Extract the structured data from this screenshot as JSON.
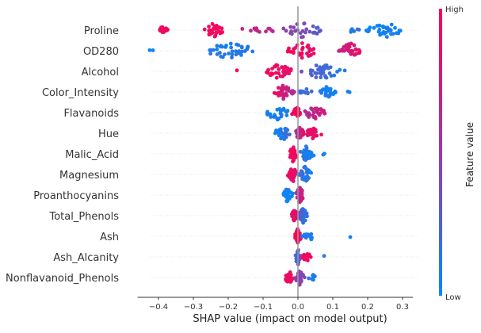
{
  "chart_data": {
    "type": "scatter",
    "subtype": "shap-beeswarm",
    "title": "",
    "xlabel": "SHAP value (impact on model output)",
    "ylabel": "",
    "xlim": [
      -0.46,
      0.33
    ],
    "xticks": [
      -0.4,
      -0.3,
      -0.2,
      -0.1,
      0.0,
      0.1,
      0.2,
      0.3
    ],
    "xtick_labels": [
      "−0.4",
      "−0.3",
      "−0.2",
      "−0.1",
      "0.0",
      "0.1",
      "0.2",
      "0.3"
    ],
    "grid": false,
    "colorbar": {
      "label": "Feature value",
      "high_label": "High",
      "low_label": "Low",
      "low_color": "#008bfb",
      "mid_color": "#9b3aa6",
      "high_color": "#ff0052",
      "placement": "right"
    },
    "features": [
      {
        "name": "Proline",
        "clusters": [
          {
            "x": [
              -0.41,
              -0.37
            ],
            "value": [
              0.9,
              0.95
            ],
            "n": 18
          },
          {
            "x": [
              -0.27,
              -0.21
            ],
            "value": [
              0.95,
              0.9
            ],
            "n": 30
          },
          {
            "x": [
              -0.17,
              -0.06
            ],
            "value": [
              0.75,
              0.65
            ],
            "n": 12
          },
          {
            "x": [
              -0.05,
              0.08
            ],
            "value": [
              0.5,
              0.25
            ],
            "n": 30
          },
          {
            "x": [
              0.13,
              0.18
            ],
            "value": [
              0.15,
              0.1
            ],
            "n": 6
          },
          {
            "x": [
              0.19,
              0.31
            ],
            "value": [
              0.05,
              0.05
            ],
            "n": 35
          }
        ]
      },
      {
        "name": "OD280",
        "clusters": [
          {
            "x": [
              -0.43,
              -0.4
            ],
            "value": [
              0.05,
              0.05
            ],
            "n": 2
          },
          {
            "x": [
              -0.29,
              -0.1
            ],
            "value": [
              0.1,
              0.1
            ],
            "n": 40
          },
          {
            "x": [
              -0.04,
              0.07
            ],
            "value": [
              0.95,
              0.85
            ],
            "n": 30
          },
          {
            "x": [
              0.11,
              0.19
            ],
            "value": [
              0.7,
              0.9
            ],
            "n": 30
          }
        ]
      },
      {
        "name": "Alcohol",
        "clusters": [
          {
            "x": [
              -0.18,
              -0.17
            ],
            "value": [
              0.95,
              0.95
            ],
            "n": 1
          },
          {
            "x": [
              -0.1,
              -0.01
            ],
            "value": [
              0.95,
              0.85
            ],
            "n": 40
          },
          {
            "x": [
              0.0,
              0.14
            ],
            "value": [
              0.35,
              0.05
            ],
            "n": 40
          }
        ]
      },
      {
        "name": "Color_Intensity",
        "clusters": [
          {
            "x": [
              -0.07,
              -0.01
            ],
            "value": [
              0.9,
              0.6
            ],
            "n": 35
          },
          {
            "x": [
              0.0,
              0.04
            ],
            "value": [
              0.2,
              0.2
            ],
            "n": 12
          },
          {
            "x": [
              0.06,
              0.11
            ],
            "value": [
              0.1,
              0.05
            ],
            "n": 25
          },
          {
            "x": [
              0.14,
              0.15
            ],
            "value": [
              0.05,
              0.05
            ],
            "n": 2
          }
        ]
      },
      {
        "name": "Flavanoids",
        "clusters": [
          {
            "x": [
              -0.1,
              -0.02
            ],
            "value": [
              0.05,
              0.1
            ],
            "n": 30
          },
          {
            "x": [
              -0.02,
              0.01
            ],
            "value": [
              0.95,
              0.95
            ],
            "n": 25
          },
          {
            "x": [
              0.01,
              0.08
            ],
            "value": [
              0.55,
              0.8
            ],
            "n": 30
          }
        ]
      },
      {
        "name": "Hue",
        "clusters": [
          {
            "x": [
              -0.07,
              -0.02
            ],
            "value": [
              0.05,
              0.2
            ],
            "n": 30
          },
          {
            "x": [
              -0.01,
              0.02
            ],
            "value": [
              0.5,
              0.9
            ],
            "n": 25
          },
          {
            "x": [
              0.02,
              0.07
            ],
            "value": [
              0.85,
              0.9
            ],
            "n": 25
          }
        ]
      },
      {
        "name": "Malic_Acid",
        "clusters": [
          {
            "x": [
              -0.03,
              0.0
            ],
            "value": [
              0.95,
              0.9
            ],
            "n": 35
          },
          {
            "x": [
              0.0,
              0.05
            ],
            "value": [
              0.15,
              0.05
            ],
            "n": 30
          },
          {
            "x": [
              0.07,
              0.08
            ],
            "value": [
              0.05,
              0.05
            ],
            "n": 2
          }
        ]
      },
      {
        "name": "Magnesium",
        "clusters": [
          {
            "x": [
              -0.03,
              0.0
            ],
            "value": [
              0.95,
              0.8
            ],
            "n": 30
          },
          {
            "x": [
              0.0,
              0.04
            ],
            "value": [
              0.2,
              0.05
            ],
            "n": 30
          }
        ]
      },
      {
        "name": "Proanthocyanins",
        "clusters": [
          {
            "x": [
              -0.05,
              -0.01
            ],
            "value": [
              0.05,
              0.05
            ],
            "n": 25
          },
          {
            "x": [
              -0.01,
              0.02
            ],
            "value": [
              0.5,
              0.85
            ],
            "n": 30
          }
        ]
      },
      {
        "name": "Total_Phenols",
        "clusters": [
          {
            "x": [
              -0.02,
              0.0
            ],
            "value": [
              0.85,
              0.9
            ],
            "n": 25
          },
          {
            "x": [
              0.0,
              0.03
            ],
            "value": [
              0.3,
              0.1
            ],
            "n": 30
          }
        ]
      },
      {
        "name": "Ash",
        "clusters": [
          {
            "x": [
              -0.01,
              0.01
            ],
            "value": [
              0.95,
              0.9
            ],
            "n": 35
          },
          {
            "x": [
              0.01,
              0.05
            ],
            "value": [
              0.1,
              0.05
            ],
            "n": 20
          },
          {
            "x": [
              0.15,
              0.15
            ],
            "value": [
              0.05,
              0.05
            ],
            "n": 1
          }
        ]
      },
      {
        "name": "Ash_Alcanity",
        "clusters": [
          {
            "x": [
              -0.01,
              0.01
            ],
            "value": [
              0.05,
              0.5
            ],
            "n": 35
          },
          {
            "x": [
              0.01,
              0.04
            ],
            "value": [
              0.9,
              0.95
            ],
            "n": 15
          },
          {
            "x": [
              0.07,
              0.08
            ],
            "value": [
              0.05,
              0.05
            ],
            "n": 1
          }
        ]
      },
      {
        "name": "Nonflavanoid_Phenols",
        "clusters": [
          {
            "x": [
              -0.04,
              -0.01
            ],
            "value": [
              0.95,
              0.9
            ],
            "n": 25
          },
          {
            "x": [
              -0.01,
              0.02
            ],
            "value": [
              0.5,
              0.4
            ],
            "n": 30
          },
          {
            "x": [
              0.02,
              0.06
            ],
            "value": [
              0.1,
              0.05
            ],
            "n": 10
          }
        ]
      }
    ]
  }
}
